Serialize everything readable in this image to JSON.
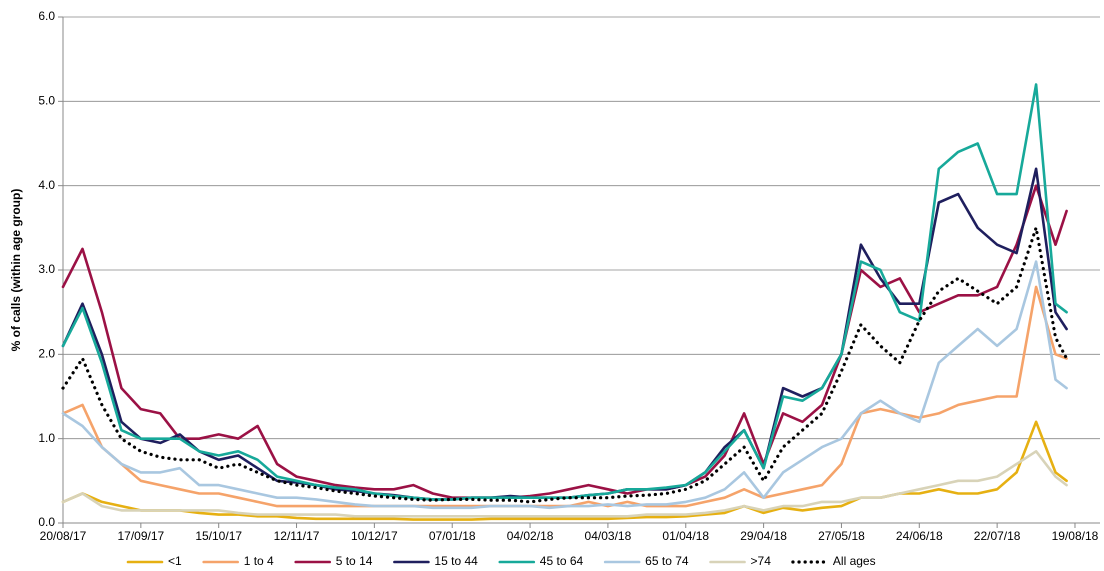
{
  "chart_data": {
    "type": "line",
    "y_label": "% of calls (within age group)",
    "x": [
      "20/08/17",
      "27/08/17",
      "03/09/17",
      "10/09/17",
      "17/09/17",
      "24/09/17",
      "01/10/17",
      "08/10/17",
      "15/10/17",
      "22/10/17",
      "29/10/17",
      "05/11/17",
      "12/11/17",
      "19/11/17",
      "26/11/17",
      "03/12/17",
      "10/12/17",
      "17/12/17",
      "24/12/17",
      "31/12/17",
      "07/01/18",
      "14/01/18",
      "21/01/18",
      "28/01/18",
      "04/02/18",
      "11/02/18",
      "18/02/18",
      "25/02/18",
      "04/03/18",
      "11/03/18",
      "18/03/18",
      "25/03/18",
      "01/04/18",
      "08/04/18",
      "15/04/18",
      "22/04/18",
      "29/04/18",
      "06/05/18",
      "13/05/18",
      "20/05/18",
      "27/05/18",
      "03/06/18",
      "10/06/18",
      "17/06/18",
      "24/06/18",
      "01/07/18",
      "08/07/18",
      "15/07/18",
      "22/07/18",
      "29/07/18",
      "05/08/18",
      "12/08/18",
      "16/08/18"
    ],
    "xlim": [
      "20/08/17",
      "28/08/18"
    ],
    "xticks": [
      "20/08/17",
      "17/09/17",
      "15/10/17",
      "12/11/17",
      "10/12/17",
      "07/01/18",
      "04/02/18",
      "04/03/18",
      "01/04/18",
      "29/04/18",
      "27/05/18",
      "24/06/18",
      "22/07/18",
      "19/08/18"
    ],
    "ylim": [
      0,
      6
    ],
    "yticks": [
      {
        "value": 0,
        "label": "0.0"
      },
      {
        "value": 1,
        "label": "1.0"
      },
      {
        "value": 2,
        "label": "2.0"
      },
      {
        "value": 3,
        "label": "3.0"
      },
      {
        "value": 4,
        "label": "4.0"
      },
      {
        "value": 5,
        "label": "5.0"
      },
      {
        "value": 6,
        "label": "6.0"
      }
    ],
    "grid": true,
    "legend": "bottom",
    "series": [
      {
        "name": "<1",
        "color": "#e6b012",
        "values": [
          0.25,
          0.35,
          0.25,
          0.2,
          0.15,
          0.15,
          0.15,
          0.12,
          0.1,
          0.1,
          0.08,
          0.08,
          0.06,
          0.05,
          0.05,
          0.05,
          0.05,
          0.05,
          0.04,
          0.04,
          0.04,
          0.04,
          0.05,
          0.05,
          0.05,
          0.05,
          0.05,
          0.05,
          0.05,
          0.06,
          0.07,
          0.07,
          0.08,
          0.1,
          0.12,
          0.2,
          0.12,
          0.18,
          0.15,
          0.18,
          0.2,
          0.3,
          0.3,
          0.35,
          0.35,
          0.4,
          0.35,
          0.35,
          0.4,
          0.6,
          1.2,
          0.6,
          0.5
        ]
      },
      {
        "name": "1 to 4",
        "color": "#f5a36a",
        "values": [
          1.3,
          1.4,
          0.9,
          0.7,
          0.5,
          0.45,
          0.4,
          0.35,
          0.35,
          0.3,
          0.25,
          0.2,
          0.2,
          0.2,
          0.2,
          0.2,
          0.2,
          0.2,
          0.2,
          0.2,
          0.2,
          0.2,
          0.2,
          0.2,
          0.2,
          0.2,
          0.2,
          0.25,
          0.2,
          0.25,
          0.2,
          0.2,
          0.2,
          0.25,
          0.3,
          0.4,
          0.3,
          0.35,
          0.4,
          0.45,
          0.7,
          1.3,
          1.35,
          1.3,
          1.25,
          1.3,
          1.4,
          1.45,
          1.5,
          1.5,
          2.8,
          2.0,
          1.95
        ]
      },
      {
        "name": "5 to 14",
        "color": "#9b1145",
        "values": [
          2.8,
          3.25,
          2.5,
          1.6,
          1.35,
          1.3,
          1.0,
          1.0,
          1.05,
          1.0,
          1.15,
          0.7,
          0.55,
          0.5,
          0.45,
          0.42,
          0.4,
          0.4,
          0.45,
          0.35,
          0.3,
          0.3,
          0.3,
          0.3,
          0.32,
          0.35,
          0.4,
          0.45,
          0.4,
          0.35,
          0.4,
          0.4,
          0.45,
          0.55,
          0.8,
          1.3,
          0.7,
          1.3,
          1.2,
          1.4,
          2.0,
          3.0,
          2.8,
          2.9,
          2.5,
          2.6,
          2.7,
          2.7,
          2.8,
          3.3,
          4.0,
          3.3,
          3.7
        ]
      },
      {
        "name": "15 to 44",
        "color": "#1f1f5e",
        "values": [
          2.1,
          2.6,
          2.0,
          1.2,
          1.0,
          0.95,
          1.05,
          0.85,
          0.75,
          0.8,
          0.65,
          0.5,
          0.48,
          0.45,
          0.4,
          0.38,
          0.35,
          0.33,
          0.3,
          0.28,
          0.28,
          0.3,
          0.3,
          0.32,
          0.3,
          0.3,
          0.3,
          0.33,
          0.35,
          0.4,
          0.4,
          0.4,
          0.45,
          0.6,
          0.9,
          1.1,
          0.65,
          1.6,
          1.5,
          1.6,
          2.0,
          3.3,
          2.9,
          2.6,
          2.6,
          3.8,
          3.9,
          3.5,
          3.3,
          3.2,
          4.2,
          2.5,
          2.3
        ]
      },
      {
        "name": "45 to 64",
        "color": "#17a99a",
        "values": [
          2.1,
          2.55,
          1.9,
          1.1,
          1.0,
          1.0,
          1.0,
          0.85,
          0.8,
          0.85,
          0.75,
          0.55,
          0.5,
          0.45,
          0.42,
          0.4,
          0.35,
          0.32,
          0.3,
          0.28,
          0.28,
          0.3,
          0.3,
          0.3,
          0.3,
          0.3,
          0.3,
          0.33,
          0.35,
          0.4,
          0.4,
          0.42,
          0.45,
          0.6,
          0.85,
          1.1,
          0.65,
          1.5,
          1.45,
          1.6,
          2.0,
          3.1,
          3.0,
          2.5,
          2.4,
          4.2,
          4.4,
          4.5,
          3.9,
          3.9,
          5.2,
          2.6,
          2.5
        ]
      },
      {
        "name": "65 to 74",
        "color": "#a9c7e0",
        "values": [
          1.3,
          1.15,
          0.9,
          0.7,
          0.6,
          0.6,
          0.65,
          0.45,
          0.45,
          0.4,
          0.35,
          0.3,
          0.3,
          0.28,
          0.25,
          0.22,
          0.2,
          0.2,
          0.2,
          0.18,
          0.18,
          0.18,
          0.2,
          0.2,
          0.2,
          0.18,
          0.2,
          0.2,
          0.22,
          0.2,
          0.22,
          0.22,
          0.25,
          0.3,
          0.4,
          0.6,
          0.3,
          0.6,
          0.75,
          0.9,
          1.0,
          1.3,
          1.45,
          1.3,
          1.2,
          1.9,
          2.1,
          2.3,
          2.1,
          2.3,
          3.1,
          1.7,
          1.6
        ]
      },
      {
        "name": ">74",
        "color": "#d8d3b8",
        "values": [
          0.25,
          0.35,
          0.2,
          0.15,
          0.15,
          0.15,
          0.15,
          0.15,
          0.15,
          0.12,
          0.1,
          0.1,
          0.1,
          0.1,
          0.1,
          0.08,
          0.08,
          0.08,
          0.08,
          0.08,
          0.08,
          0.08,
          0.08,
          0.08,
          0.08,
          0.08,
          0.08,
          0.08,
          0.08,
          0.08,
          0.1,
          0.1,
          0.1,
          0.12,
          0.15,
          0.2,
          0.15,
          0.2,
          0.2,
          0.25,
          0.25,
          0.3,
          0.3,
          0.35,
          0.4,
          0.45,
          0.5,
          0.5,
          0.55,
          0.7,
          0.85,
          0.55,
          0.45
        ]
      },
      {
        "name": "All ages",
        "color": "#000000",
        "style": "dotted",
        "values": [
          1.6,
          1.95,
          1.4,
          1.0,
          0.85,
          0.78,
          0.75,
          0.75,
          0.65,
          0.7,
          0.6,
          0.5,
          0.45,
          0.42,
          0.38,
          0.35,
          0.32,
          0.3,
          0.28,
          0.27,
          0.28,
          0.28,
          0.27,
          0.27,
          0.25,
          0.28,
          0.3,
          0.3,
          0.3,
          0.32,
          0.33,
          0.35,
          0.4,
          0.5,
          0.7,
          0.9,
          0.5,
          0.9,
          1.1,
          1.3,
          1.8,
          2.35,
          2.1,
          1.9,
          2.4,
          2.75,
          2.9,
          2.75,
          2.6,
          2.8,
          3.5,
          2.2,
          1.95
        ]
      }
    ]
  }
}
